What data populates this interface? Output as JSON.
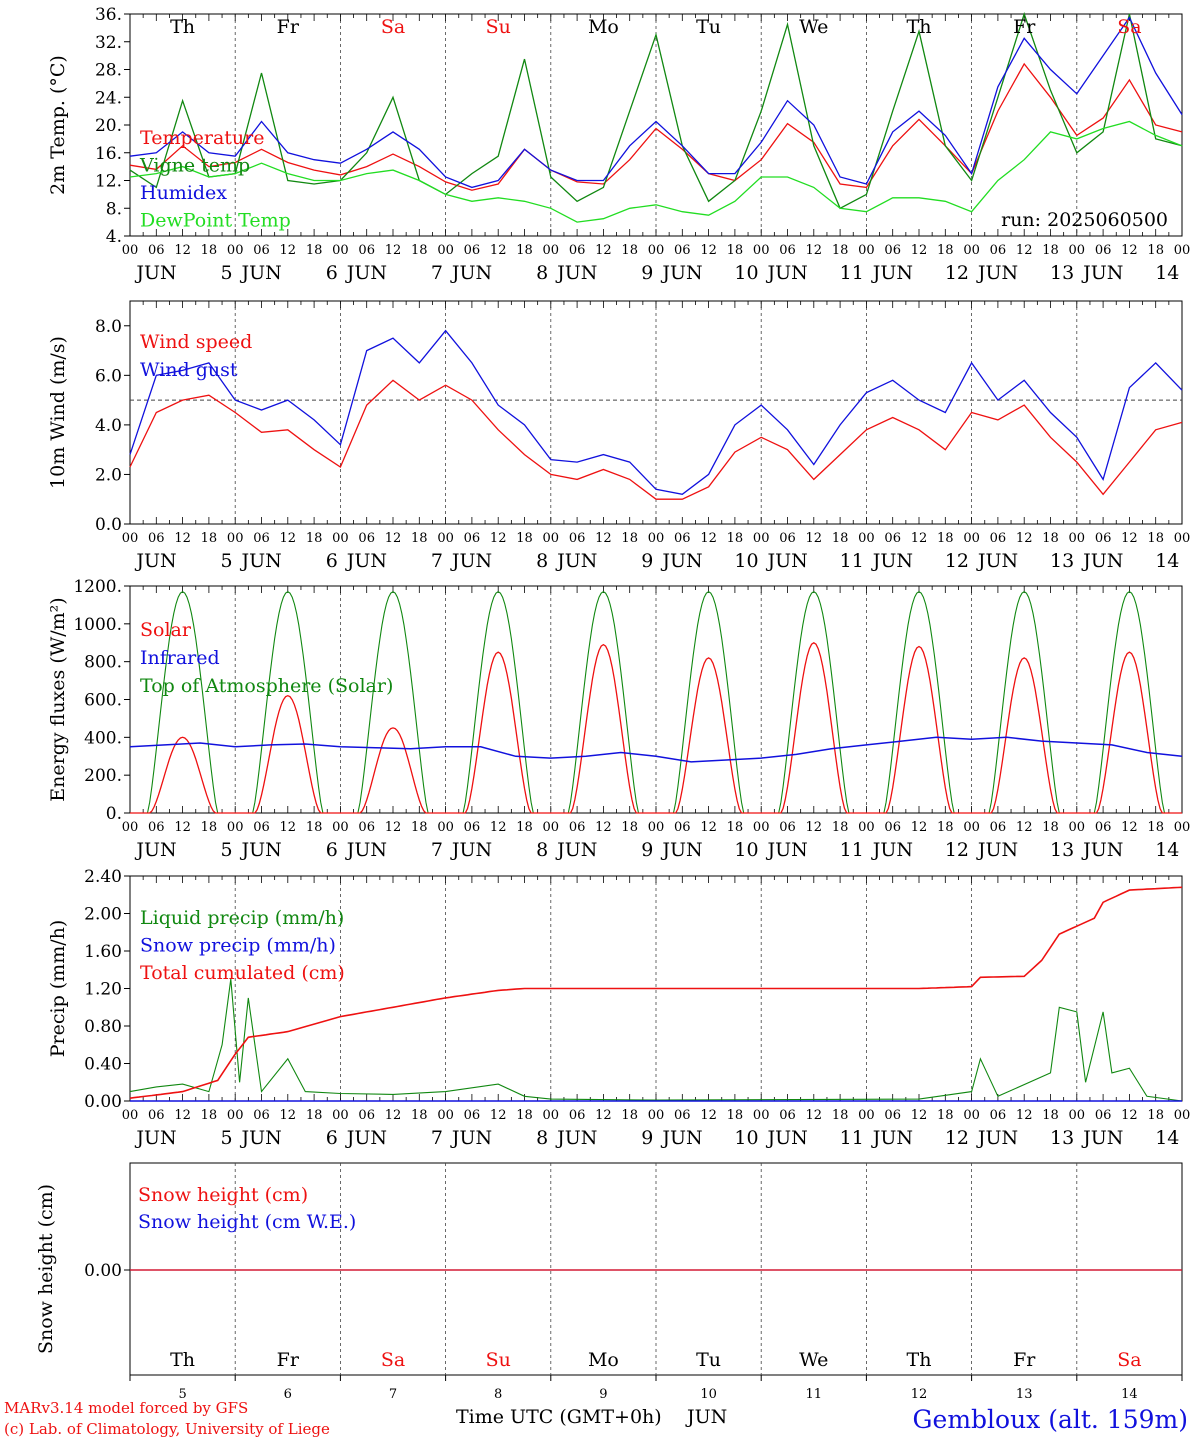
{
  "colors": {
    "red": "#ee1111",
    "green": "#118811",
    "blue": "#1111dd",
    "lightgreen": "#22dd22",
    "axis": "#000000",
    "grid": "#444444"
  },
  "run_label": "run: 2025060500",
  "footer": {
    "credit1": "MARv3.14 model forced by GFS",
    "credit2": "(c) Lab. of Climatology, University of Liege",
    "time_axis": "Time UTC (GMT+0h)",
    "month": "JUN",
    "location": "Gembloux (alt. 159m)"
  },
  "hour_ticks": [
    "00",
    "06",
    "12",
    "18"
  ],
  "days": [
    {
      "abbr": "Th",
      "num": "5",
      "weekend": false
    },
    {
      "abbr": "Fr",
      "num": "6",
      "weekend": false
    },
    {
      "abbr": "Sa",
      "num": "7",
      "weekend": true
    },
    {
      "abbr": "Su",
      "num": "8",
      "weekend": true
    },
    {
      "abbr": "Mo",
      "num": "9",
      "weekend": false
    },
    {
      "abbr": "Tu",
      "num": "10",
      "weekend": false
    },
    {
      "abbr": "We",
      "num": "11",
      "weekend": false
    },
    {
      "abbr": "Th",
      "num": "12",
      "weekend": false
    },
    {
      "abbr": "Fr",
      "num": "13",
      "weekend": false
    },
    {
      "abbr": "Sa",
      "num": "14",
      "weekend": true
    }
  ],
  "chart_data": [
    {
      "type": "line",
      "ylabel": "2m Temp. (°C)",
      "ylim": [
        4,
        36
      ],
      "yticks": [
        4,
        8,
        12,
        16,
        20,
        24,
        28,
        32,
        36
      ],
      "ytick_labels": [
        "4.",
        "8.",
        "12.",
        "16.",
        "20.",
        "24.",
        "28.",
        "32.",
        "36."
      ],
      "x_hours": [
        0,
        6,
        12,
        18,
        24,
        30,
        36,
        42,
        48,
        54,
        60,
        66,
        72,
        78,
        84,
        90,
        96,
        102,
        108,
        114,
        120,
        126,
        132,
        138,
        144,
        150,
        156,
        162,
        168,
        174,
        180,
        186,
        192,
        198,
        204,
        210,
        216,
        222,
        228,
        234,
        240
      ],
      "series": [
        {
          "name": "Temperature",
          "color": "#ee1111",
          "values": [
            14.2,
            13.6,
            17.0,
            14.0,
            14.6,
            16.5,
            14.6,
            13.5,
            12.8,
            14.0,
            15.8,
            14.0,
            11.8,
            10.6,
            11.5,
            16.5,
            13.5,
            11.8,
            11.5,
            15.0,
            19.5,
            16.5,
            13.0,
            12.0,
            15.0,
            20.2,
            17.5,
            11.5,
            11.0,
            17.0,
            20.8,
            17.0,
            13.0,
            22.0,
            28.8,
            24.0,
            18.5,
            21.0,
            26.5,
            20.0,
            19.0
          ]
        },
        {
          "name": "Vigne temp",
          "color": "#118811",
          "values": [
            13.5,
            11.0,
            23.5,
            12.5,
            13.0,
            27.5,
            12.0,
            11.5,
            12.0,
            16.0,
            24.0,
            12.0,
            10.0,
            13.0,
            15.5,
            29.5,
            12.5,
            9.0,
            11.0,
            22.0,
            33.0,
            17.0,
            9.0,
            12.0,
            22.0,
            34.5,
            17.0,
            8.0,
            10.0,
            22.0,
            33.5,
            17.0,
            12.0,
            24.0,
            36.0,
            25.0,
            16.0,
            19.0,
            37.0,
            18.0,
            17.0
          ]
        },
        {
          "name": "Humidex",
          "color": "#1111dd",
          "values": [
            15.5,
            16.0,
            19.0,
            16.0,
            15.5,
            20.5,
            16.0,
            15.0,
            14.5,
            16.5,
            19.0,
            16.5,
            12.5,
            11.0,
            12.0,
            16.5,
            13.5,
            12.0,
            12.0,
            17.0,
            20.5,
            17.0,
            13.0,
            13.0,
            17.5,
            23.5,
            20.0,
            12.5,
            11.5,
            19.0,
            22.0,
            18.5,
            13.0,
            25.5,
            32.5,
            28.0,
            24.5,
            30.0,
            35.5,
            27.5,
            21.5
          ]
        },
        {
          "name": "DewPoint Temp",
          "color": "#22dd22",
          "values": [
            12.5,
            13.0,
            14.0,
            12.5,
            13.0,
            14.5,
            13.0,
            12.0,
            12.0,
            13.0,
            13.5,
            12.0,
            10.0,
            9.0,
            9.5,
            9.0,
            8.0,
            6.0,
            6.5,
            8.0,
            8.5,
            7.5,
            7.0,
            9.0,
            12.5,
            12.5,
            11.0,
            8.0,
            7.5,
            9.5,
            9.5,
            9.0,
            7.5,
            12.0,
            15.0,
            19.0,
            18.0,
            19.5,
            20.5,
            18.5,
            17.0
          ]
        }
      ]
    },
    {
      "type": "line",
      "ylabel": "10m Wind (m/s)",
      "ylim": [
        0,
        9
      ],
      "yticks": [
        0,
        2,
        4,
        6,
        8
      ],
      "ytick_labels": [
        "0.0",
        "2.0",
        "4.0",
        "6.0",
        "8.0"
      ],
      "reference_line": 5,
      "x_hours": [
        0,
        6,
        12,
        18,
        24,
        30,
        36,
        42,
        48,
        54,
        60,
        66,
        72,
        78,
        84,
        90,
        96,
        102,
        108,
        114,
        120,
        126,
        132,
        138,
        144,
        150,
        156,
        162,
        168,
        174,
        180,
        186,
        192,
        198,
        204,
        210,
        216,
        222,
        228,
        234,
        240
      ],
      "series": [
        {
          "name": "Wind speed",
          "color": "#ee1111",
          "values": [
            2.3,
            4.5,
            5.0,
            5.2,
            4.5,
            3.7,
            3.8,
            3.0,
            2.3,
            4.8,
            5.8,
            5.0,
            5.6,
            5.0,
            3.8,
            2.8,
            2.0,
            1.8,
            2.2,
            1.8,
            1.0,
            1.0,
            1.5,
            2.9,
            3.5,
            3.0,
            1.8,
            2.8,
            3.8,
            4.3,
            3.8,
            3.0,
            4.5,
            4.2,
            4.8,
            3.5,
            2.5,
            1.2,
            2.5,
            3.8,
            4.1
          ]
        },
        {
          "name": "Wind gust",
          "color": "#1111dd",
          "values": [
            2.8,
            6.0,
            6.2,
            6.5,
            5.0,
            4.6,
            5.0,
            4.2,
            3.2,
            7.0,
            7.5,
            6.5,
            7.8,
            6.5,
            4.8,
            4.0,
            2.6,
            2.5,
            2.8,
            2.5,
            1.4,
            1.2,
            2.0,
            4.0,
            4.8,
            3.8,
            2.4,
            4.0,
            5.3,
            5.8,
            5.0,
            4.5,
            6.5,
            5.0,
            5.8,
            4.5,
            3.5,
            1.8,
            5.5,
            6.5,
            5.4
          ]
        }
      ]
    },
    {
      "type": "line",
      "ylabel": "Energy fluxes (W/m²)",
      "ylim": [
        0,
        1200
      ],
      "yticks": [
        0,
        200,
        400,
        600,
        800,
        1000,
        1200
      ],
      "ytick_labels": [
        "0.",
        "200.",
        "400.",
        "600.",
        "800.",
        "1000.",
        "1200."
      ],
      "solar_peaks": [
        400,
        620,
        450,
        850,
        890,
        820,
        900,
        880,
        820,
        850
      ],
      "toa_peak": 1170,
      "infrared": [
        350,
        360,
        370,
        350,
        360,
        365,
        350,
        345,
        340,
        350,
        350,
        300,
        290,
        300,
        320,
        300,
        270,
        280,
        290,
        310,
        340,
        360,
        380,
        400,
        390,
        400,
        380,
        370,
        360,
        320,
        300
      ],
      "series": [
        {
          "name": "Solar",
          "color": "#ee1111"
        },
        {
          "name": "Infrared",
          "color": "#1111dd"
        },
        {
          "name": "Top of Atmosphere (Solar)",
          "color": "#118811"
        }
      ]
    },
    {
      "type": "line",
      "ylabel": "Precip (mm/h)",
      "ylim": [
        0,
        2.4
      ],
      "yticks": [
        0,
        0.4,
        0.8,
        1.2,
        1.6,
        2.0,
        2.4
      ],
      "ytick_labels": [
        "0.00",
        "0.40",
        "0.80",
        "1.20",
        "1.60",
        "2.00",
        "2.40"
      ],
      "liquid": [
        [
          0,
          0.1
        ],
        [
          6,
          0.15
        ],
        [
          12,
          0.18
        ],
        [
          18,
          0.1
        ],
        [
          21,
          0.6
        ],
        [
          23,
          1.3
        ],
        [
          25,
          0.2
        ],
        [
          27,
          1.1
        ],
        [
          30,
          0.1
        ],
        [
          36,
          0.45
        ],
        [
          40,
          0.1
        ],
        [
          48,
          0.08
        ],
        [
          60,
          0.07
        ],
        [
          72,
          0.1
        ],
        [
          84,
          0.18
        ],
        [
          90,
          0.05
        ],
        [
          96,
          0.02
        ],
        [
          120,
          0.01
        ],
        [
          180,
          0.02
        ],
        [
          192,
          0.1
        ],
        [
          194,
          0.45
        ],
        [
          198,
          0.05
        ],
        [
          210,
          0.3
        ],
        [
          212,
          1.0
        ],
        [
          216,
          0.95
        ],
        [
          218,
          0.2
        ],
        [
          222,
          0.95
        ],
        [
          224,
          0.3
        ],
        [
          228,
          0.35
        ],
        [
          232,
          0.05
        ],
        [
          240,
          0
        ]
      ],
      "cumulative": [
        [
          0,
          0.03
        ],
        [
          12,
          0.1
        ],
        [
          20,
          0.22
        ],
        [
          24,
          0.5
        ],
        [
          27,
          0.68
        ],
        [
          36,
          0.74
        ],
        [
          48,
          0.9
        ],
        [
          60,
          1.0
        ],
        [
          72,
          1.1
        ],
        [
          84,
          1.18
        ],
        [
          90,
          1.2
        ],
        [
          180,
          1.2
        ],
        [
          192,
          1.22
        ],
        [
          194,
          1.32
        ],
        [
          204,
          1.33
        ],
        [
          208,
          1.5
        ],
        [
          212,
          1.78
        ],
        [
          220,
          1.95
        ],
        [
          222,
          2.12
        ],
        [
          228,
          2.25
        ],
        [
          240,
          2.28
        ]
      ],
      "series": [
        {
          "name": "Liquid precip (mm/h)",
          "color": "#118811"
        },
        {
          "name": "Snow precip (mm/h)",
          "color": "#1111dd"
        },
        {
          "name": "Total cumulated (cm)",
          "color": "#ee1111"
        }
      ]
    },
    {
      "type": "line",
      "ylabel": "Snow height (cm)",
      "ytick_labels": [
        "0.00"
      ],
      "value": 0,
      "series": [
        {
          "name": "Snow height (cm)",
          "color": "#ee1111"
        },
        {
          "name": "Snow height (cm W.E.)",
          "color": "#1111dd"
        }
      ]
    }
  ]
}
